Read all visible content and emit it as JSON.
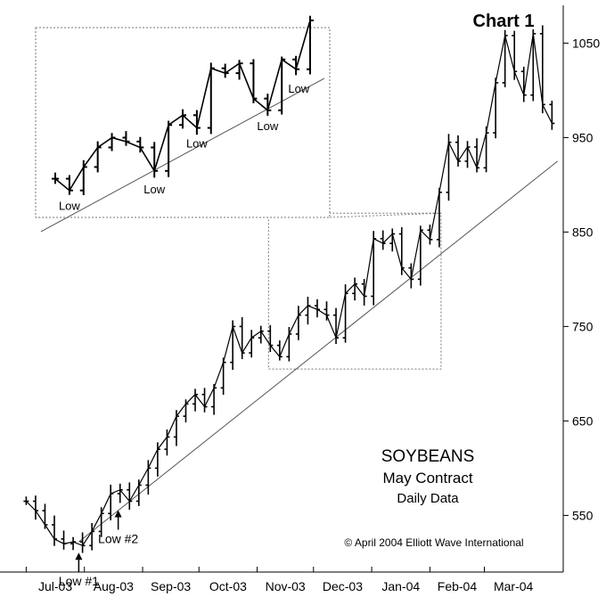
{
  "chart_data": {
    "type": "line",
    "title": "Chart 1",
    "commodity": "SOYBEANS",
    "contract": "May Contract",
    "frequency": "Daily Data",
    "copyright": "© April 2004 Elliott Wave International",
    "xlabel": "",
    "ylabel": "",
    "x_ticks": [
      "Jul-03",
      "Aug-03",
      "Sep-03",
      "Oct-03",
      "Nov-03",
      "Dec-03",
      "Jan-04",
      "Feb-04",
      "Mar-04"
    ],
    "y_ticks": [
      550,
      650,
      750,
      850,
      950,
      1050
    ],
    "ylim": [
      490,
      1090
    ],
    "grid": false,
    "series": [
      {
        "name": "",
        "points": [
          [
            "2003-07-01",
            565
          ],
          [
            "2003-07-06",
            555
          ],
          [
            "2003-07-11",
            540
          ],
          [
            "2003-07-16",
            525
          ],
          [
            "2003-07-21",
            520
          ],
          [
            "2003-07-26",
            522
          ],
          [
            "2003-07-31",
            518
          ],
          [
            "2003-08-05",
            533
          ],
          [
            "2003-08-10",
            552
          ],
          [
            "2003-08-15",
            573
          ],
          [
            "2003-08-20",
            577
          ],
          [
            "2003-08-25",
            565
          ],
          [
            "2003-08-30",
            582
          ],
          [
            "2003-09-04",
            600
          ],
          [
            "2003-09-09",
            620
          ],
          [
            "2003-09-14",
            633
          ],
          [
            "2003-09-19",
            655
          ],
          [
            "2003-09-24",
            668
          ],
          [
            "2003-09-29",
            678
          ],
          [
            "2003-10-04",
            665
          ],
          [
            "2003-10-09",
            685
          ],
          [
            "2003-10-14",
            712
          ],
          [
            "2003-10-19",
            750
          ],
          [
            "2003-10-24",
            722
          ],
          [
            "2003-10-29",
            738
          ],
          [
            "2003-11-03",
            745
          ],
          [
            "2003-11-08",
            730
          ],
          [
            "2003-11-13",
            718
          ],
          [
            "2003-11-18",
            742
          ],
          [
            "2003-11-23",
            762
          ],
          [
            "2003-11-28",
            772
          ],
          [
            "2003-12-03",
            768
          ],
          [
            "2003-12-08",
            762
          ],
          [
            "2003-12-13",
            738
          ],
          [
            "2003-12-18",
            785
          ],
          [
            "2003-12-23",
            795
          ],
          [
            "2003-12-28",
            782
          ],
          [
            "2004-01-02",
            843
          ],
          [
            "2004-01-07",
            838
          ],
          [
            "2004-01-12",
            848
          ],
          [
            "2004-01-17",
            812
          ],
          [
            "2004-01-22",
            800
          ],
          [
            "2004-01-27",
            852
          ],
          [
            "2004-02-01",
            842
          ],
          [
            "2004-02-06",
            892
          ],
          [
            "2004-02-11",
            945
          ],
          [
            "2004-02-16",
            925
          ],
          [
            "2004-02-21",
            940
          ],
          [
            "2004-02-26",
            918
          ],
          [
            "2004-03-02",
            955
          ],
          [
            "2004-03-07",
            1008
          ],
          [
            "2004-03-12",
            1058
          ],
          [
            "2004-03-17",
            1020
          ],
          [
            "2004-03-22",
            995
          ],
          [
            "2004-03-27",
            1060
          ],
          [
            "2004-04-01",
            985
          ],
          [
            "2004-04-06",
            965
          ]
        ]
      }
    ],
    "trendline": [
      [
        "2003-07-29",
        522
      ],
      [
        "2004-04-09",
        925
      ]
    ],
    "annotations": [
      {
        "label": "Low #1",
        "x": "2003-07-29",
        "y": 520
      },
      {
        "label": "Low #2",
        "x": "2003-08-19",
        "y": 565
      }
    ],
    "inset": {
      "range_x": [
        "2003-11-08",
        "2004-02-06"
      ],
      "range_y": [
        705,
        870
      ],
      "lows": [
        {
          "label": "Low",
          "x": "2003-11-13",
          "y": 718
        },
        {
          "label": "Low",
          "x": "2003-12-13",
          "y": 735
        },
        {
          "label": "Low",
          "x": "2003-12-28",
          "y": 782
        },
        {
          "label": "Low",
          "x": "2004-01-22",
          "y": 800
        },
        {
          "label": "Low",
          "x": "2004-02-02",
          "y": 838
        }
      ]
    }
  }
}
